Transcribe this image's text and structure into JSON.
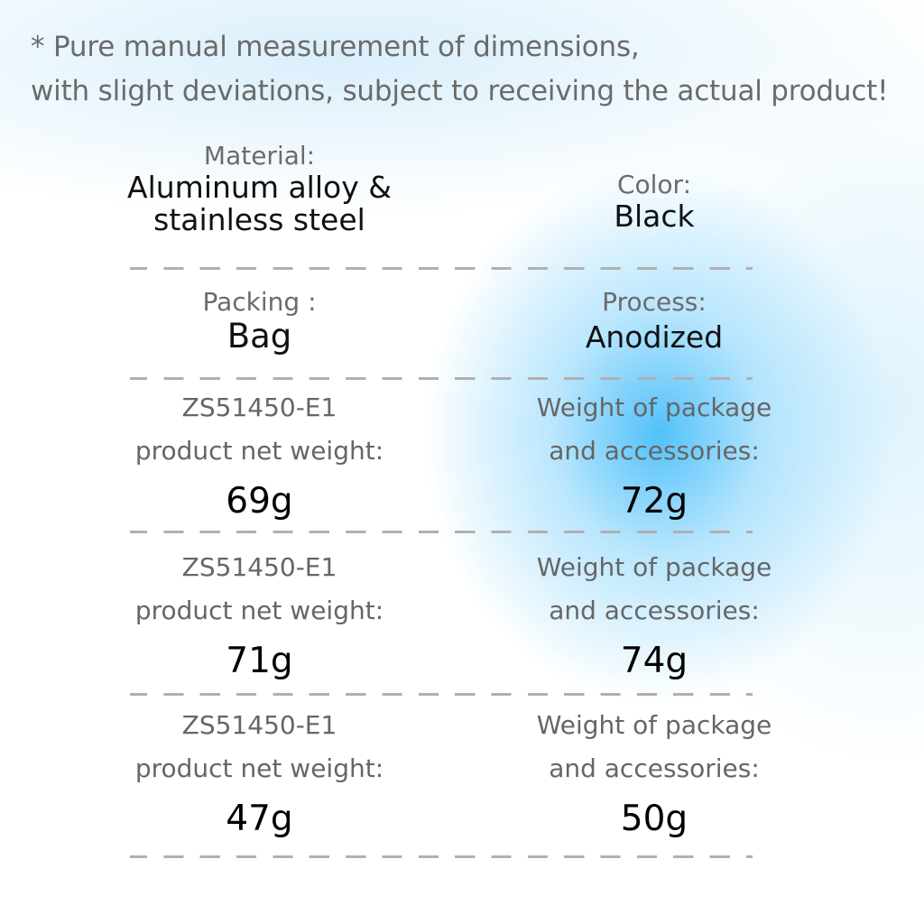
{
  "note": {
    "line1": "* Pure manual measurement of dimensions,",
    "line2": "with slight deviations, subject to receiving the actual product!"
  },
  "specs": {
    "material": {
      "label": "Material:",
      "value_line1": "Aluminum alloy &",
      "value_line2": "stainless steel"
    },
    "color": {
      "label": "Color:",
      "value": "Black"
    },
    "packing": {
      "label": "Packing :",
      "value": "Bag"
    },
    "process": {
      "label": "Process:",
      "value": "Anodized"
    }
  },
  "weights": [
    {
      "model": "ZS51450-E1",
      "net_label": "product net weight:",
      "net_value": "69g",
      "pkg_label_line1": "Weight of package",
      "pkg_label_line2": "and accessories:",
      "pkg_value": "72g"
    },
    {
      "model": "ZS51450-E1",
      "net_label": "product net weight:",
      "net_value": "71g",
      "pkg_label_line1": "Weight of package",
      "pkg_label_line2": "and accessories:",
      "pkg_value": "74g"
    },
    {
      "model": "ZS51450-E1",
      "net_label": "product net weight:",
      "net_value": "47g",
      "pkg_label_line1": "Weight of package",
      "pkg_label_line2": "and accessories:",
      "pkg_value": "50g"
    }
  ],
  "colors": {
    "accent_glow": "#48BEFA",
    "label_gray": "#6B6B6B",
    "value_black": "#111111",
    "divider_gray": "#B0B0B0"
  }
}
